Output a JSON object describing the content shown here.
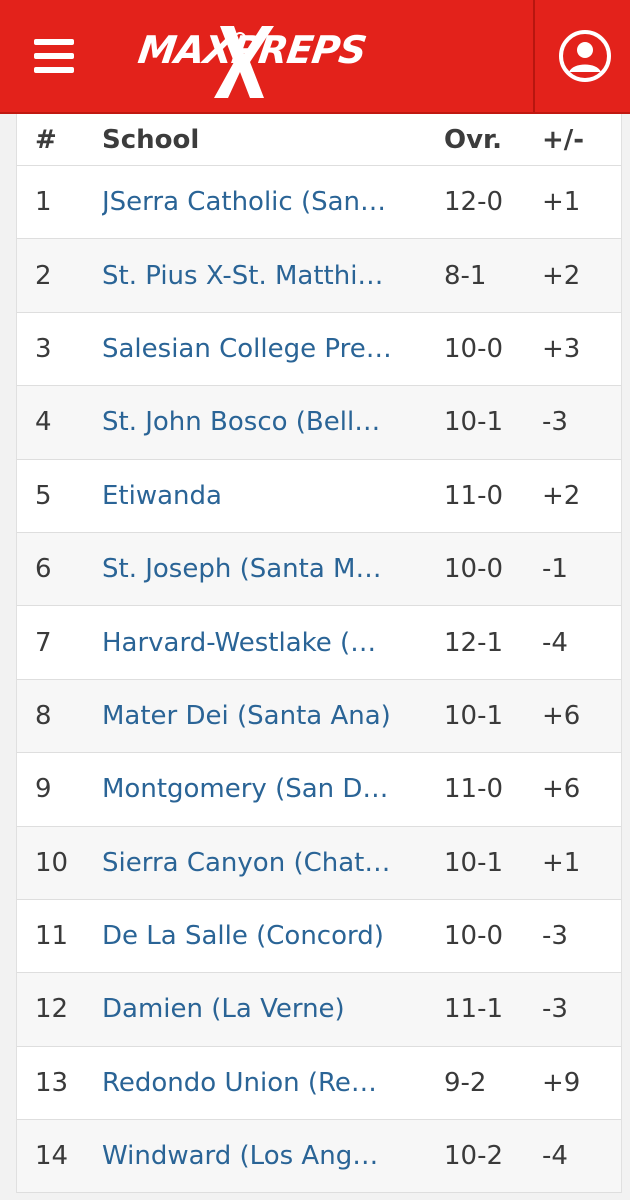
{
  "header": {
    "logo_text": "MAXPREPS",
    "colors": {
      "brand_red": "#e3221b",
      "link_blue": "#2a6496"
    }
  },
  "table": {
    "columns": {
      "rank": "#",
      "school": "School",
      "overall": "Ovr.",
      "change": "+/-"
    },
    "rows": [
      {
        "rank": "1",
        "school": "JSerra Catholic (San…",
        "overall": "12-0",
        "change": "+1"
      },
      {
        "rank": "2",
        "school": "St. Pius X-St. Matthi…",
        "overall": "8-1",
        "change": "+2"
      },
      {
        "rank": "3",
        "school": "Salesian College Pre…",
        "overall": "10-0",
        "change": "+3"
      },
      {
        "rank": "4",
        "school": "St. John Bosco (Bell…",
        "overall": "10-1",
        "change": "-3"
      },
      {
        "rank": "5",
        "school": "Etiwanda",
        "overall": "11-0",
        "change": "+2"
      },
      {
        "rank": "6",
        "school": "St. Joseph (Santa M…",
        "overall": "10-0",
        "change": "-1"
      },
      {
        "rank": "7",
        "school": "Harvard-Westlake (…",
        "overall": "12-1",
        "change": "-4"
      },
      {
        "rank": "8",
        "school": "Mater Dei (Santa Ana)",
        "overall": "10-1",
        "change": "+6"
      },
      {
        "rank": "9",
        "school": "Montgomery (San D…",
        "overall": "11-0",
        "change": "+6"
      },
      {
        "rank": "10",
        "school": "Sierra Canyon (Chat…",
        "overall": "10-1",
        "change": "+1"
      },
      {
        "rank": "11",
        "school": "De La Salle (Concord)",
        "overall": "10-0",
        "change": "-3"
      },
      {
        "rank": "12",
        "school": "Damien (La Verne)",
        "overall": "11-1",
        "change": "-3"
      },
      {
        "rank": "13",
        "school": "Redondo Union (Re…",
        "overall": "9-2",
        "change": "+9"
      },
      {
        "rank": "14",
        "school": "Windward (Los Ang…",
        "overall": "10-2",
        "change": "-4"
      }
    ]
  }
}
